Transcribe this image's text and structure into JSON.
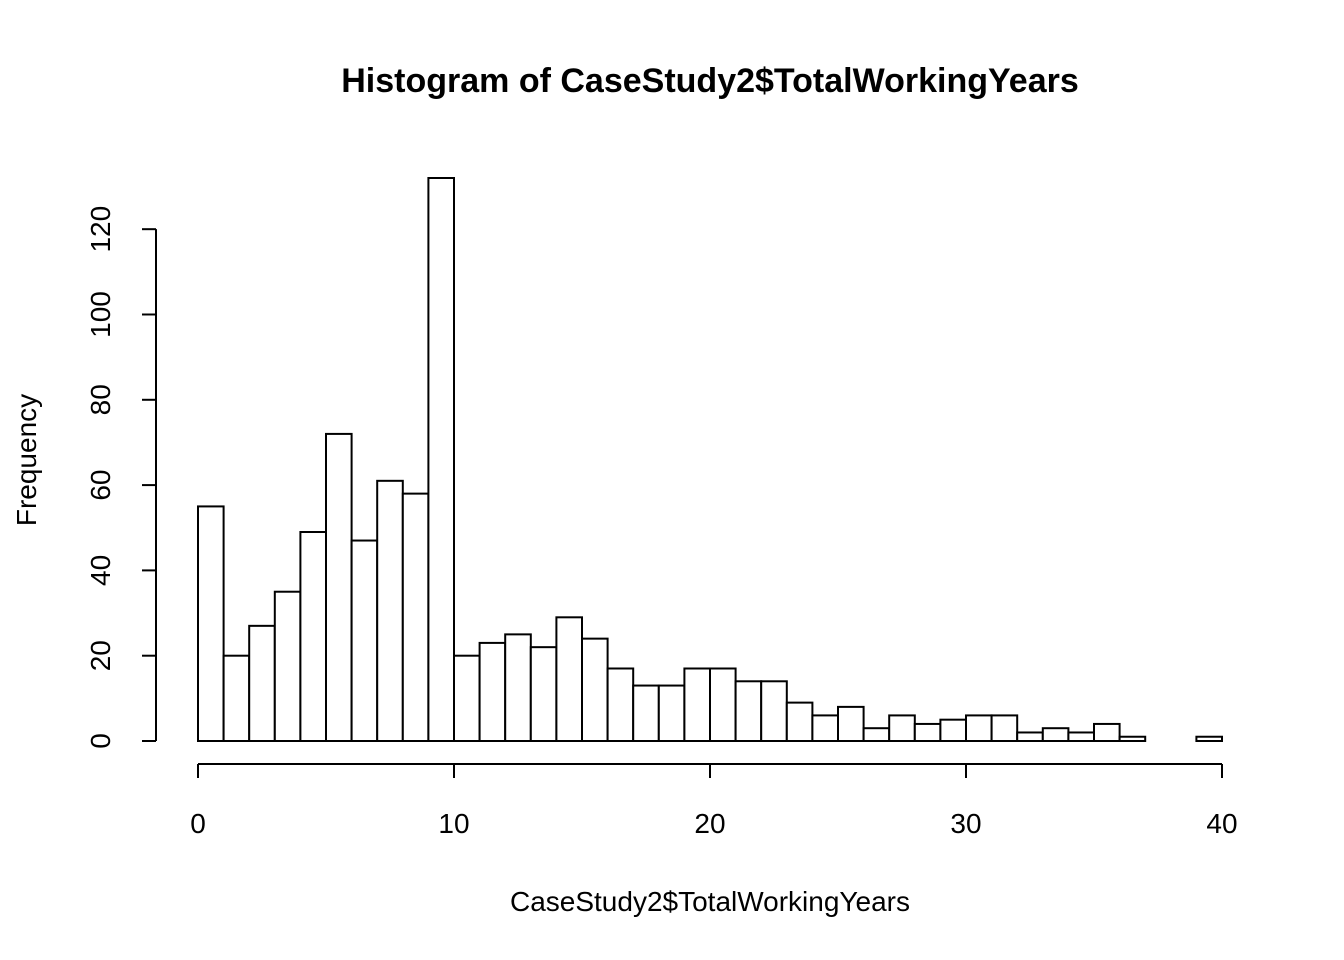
{
  "chart_data": {
    "type": "bar",
    "title": "Histogram of CaseStudy2$TotalWorkingYears",
    "xlabel": "CaseStudy2$TotalWorkingYears",
    "ylabel": "Frequency",
    "xlim": [
      0,
      40
    ],
    "ylim": [
      0,
      132
    ],
    "bin_width": 1,
    "bin_start": 0,
    "x_ticks": [
      0,
      10,
      20,
      30,
      40
    ],
    "y_ticks": [
      0,
      20,
      40,
      60,
      80,
      100,
      120
    ],
    "values": [
      55,
      20,
      27,
      35,
      49,
      72,
      47,
      61,
      58,
      132,
      20,
      23,
      25,
      22,
      29,
      24,
      17,
      13,
      13,
      17,
      17,
      14,
      14,
      9,
      6,
      8,
      3,
      6,
      4,
      5,
      6,
      6,
      2,
      3,
      2,
      4,
      1,
      0,
      0,
      1
    ],
    "grid": false,
    "legend": "none"
  }
}
